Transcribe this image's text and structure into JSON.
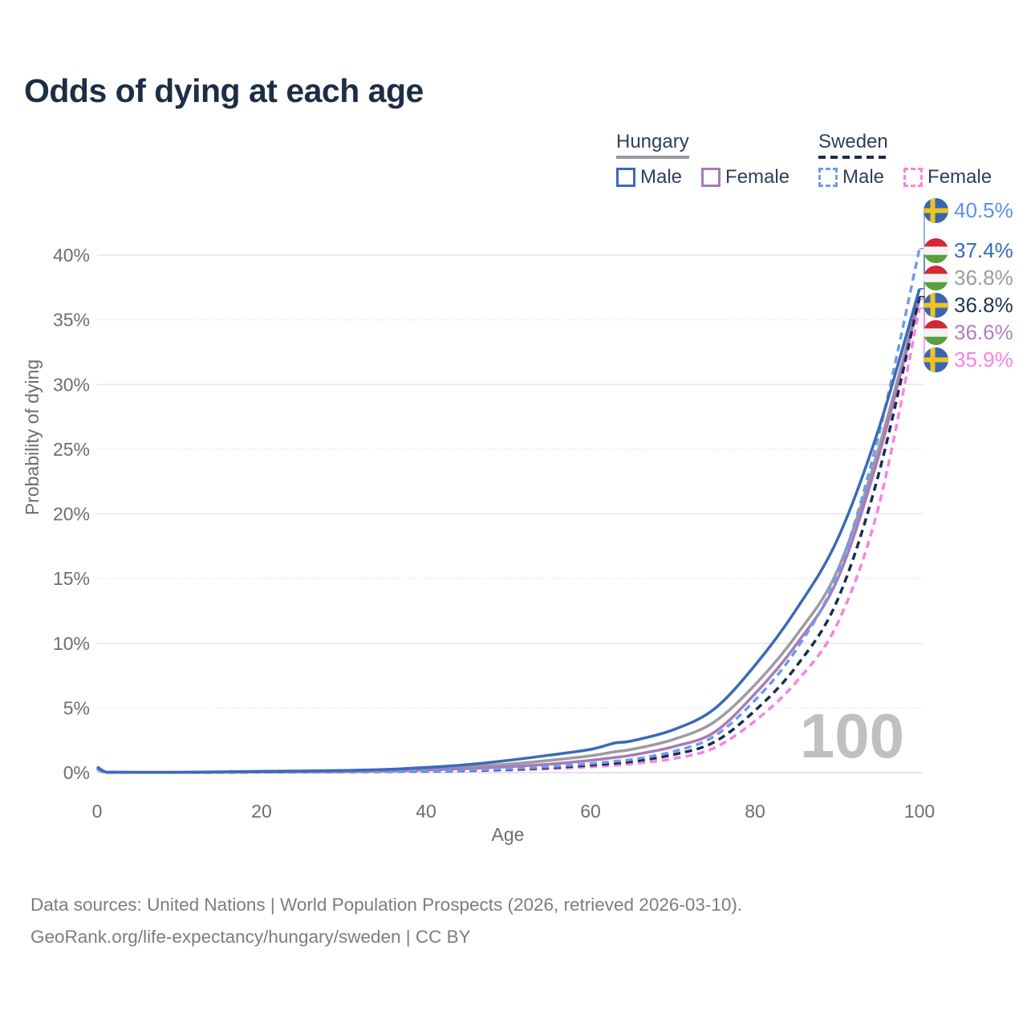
{
  "title": "Odds of dying at each age",
  "legend": {
    "groups": [
      {
        "name": "Hungary",
        "line_style": "solid",
        "underline_color": "#9a9aa0",
        "items": [
          {
            "label": "Male",
            "color": "#3a6ab8"
          },
          {
            "label": "Female",
            "color": "#a97ab8"
          }
        ]
      },
      {
        "name": "Sweden",
        "line_style": "dashed",
        "underline_color": "#1e2c4c",
        "items": [
          {
            "label": "Male",
            "color": "#6d9bef"
          },
          {
            "label": "Female",
            "color": "#fb80e6"
          }
        ]
      }
    ]
  },
  "flags": {
    "se": {
      "bg": "#3a66b0",
      "cross": "#f0c41e"
    },
    "hu": {
      "red": "#d02a38",
      "white": "#f3f3f3",
      "green": "#5a9e40"
    }
  },
  "chart_data": {
    "type": "line",
    "title": "Odds of dying at each age",
    "xlabel": "Age",
    "ylabel": "Probability of dying",
    "xlim": [
      0,
      100
    ],
    "ylim_percent": [
      0,
      42
    ],
    "x_ticks": [
      0,
      20,
      40,
      60,
      80,
      100
    ],
    "y_ticks_percent": [
      0,
      5,
      10,
      15,
      20,
      25,
      30,
      35,
      40
    ],
    "grid": "horizontal",
    "legend_position": "top-right",
    "watermark": "100",
    "x": [
      0,
      1,
      2,
      5,
      10,
      15,
      20,
      25,
      30,
      35,
      40,
      45,
      50,
      55,
      60,
      63,
      65,
      70,
      75,
      80,
      85,
      90,
      95,
      100
    ],
    "series": [
      {
        "name": "Hungary",
        "country": "hu",
        "dashed": false,
        "color": "#9b9ba1",
        "label_color": "#9b9ba1",
        "end_label": "36.8%",
        "values": [
          0.4,
          0.05,
          0.03,
          0.02,
          0.03,
          0.05,
          0.07,
          0.09,
          0.12,
          0.18,
          0.28,
          0.44,
          0.66,
          0.95,
          1.3,
          1.62,
          1.8,
          2.55,
          3.9,
          6.8,
          10.6,
          15.6,
          25.0,
          36.8
        ]
      },
      {
        "name": "Hungary Female",
        "country": "hu",
        "dashed": false,
        "color": "#a97ab8",
        "label_color": "#b27fc0",
        "end_label": "36.6%",
        "values": [
          0.35,
          0.05,
          0.03,
          0.02,
          0.02,
          0.04,
          0.05,
          0.06,
          0.08,
          0.12,
          0.2,
          0.31,
          0.46,
          0.66,
          0.95,
          1.18,
          1.35,
          2.0,
          3.1,
          6.1,
          9.9,
          14.9,
          24.4,
          36.6
        ]
      },
      {
        "name": "Sweden Female",
        "country": "se",
        "dashed": true,
        "color": "#fb80e6",
        "label_color": "#fb80e6",
        "end_label": "35.9%",
        "values": [
          0.25,
          0.03,
          0.02,
          0.02,
          0.02,
          0.02,
          0.03,
          0.04,
          0.05,
          0.07,
          0.1,
          0.14,
          0.2,
          0.3,
          0.45,
          0.57,
          0.68,
          1.08,
          1.9,
          4.0,
          7.0,
          11.5,
          20.5,
          35.9
        ]
      },
      {
        "name": "Sweden",
        "country": "se",
        "dashed": true,
        "color": "#1e2c4c",
        "label_color": "#263550",
        "end_label": "36.8%",
        "values": [
          0.28,
          0.04,
          0.02,
          0.02,
          0.02,
          0.03,
          0.05,
          0.06,
          0.07,
          0.09,
          0.12,
          0.17,
          0.25,
          0.38,
          0.58,
          0.73,
          0.86,
          1.38,
          2.35,
          4.8,
          8.2,
          13.3,
          23.0,
          36.8
        ]
      },
      {
        "name": "Sweden Male",
        "country": "se",
        "dashed": true,
        "color": "#6d9bef",
        "label_color": "#5c8ff0",
        "end_label": "40.5%",
        "values": [
          0.3,
          0.04,
          0.03,
          0.02,
          0.02,
          0.04,
          0.06,
          0.07,
          0.08,
          0.1,
          0.14,
          0.2,
          0.3,
          0.46,
          0.7,
          0.88,
          1.02,
          1.62,
          2.8,
          5.6,
          9.5,
          15.3,
          26.0,
          40.5
        ]
      },
      {
        "name": "Hungary Male",
        "country": "hu",
        "dashed": false,
        "color": "#3a6ab8",
        "label_color": "#3a6ab8",
        "end_label": "37.4%",
        "values": [
          0.45,
          0.06,
          0.04,
          0.03,
          0.03,
          0.06,
          0.1,
          0.13,
          0.17,
          0.25,
          0.4,
          0.62,
          0.95,
          1.35,
          1.8,
          2.3,
          2.45,
          3.3,
          4.9,
          8.3,
          12.6,
          18.0,
          26.5,
          37.4
        ]
      }
    ]
  },
  "footer": {
    "line1": "Data sources: United Nations | World Population Prospects (2026, retrieved 2026-03-10).",
    "line2": "GeoRank.org/life-expectancy/hungary/sweden | CC BY"
  }
}
